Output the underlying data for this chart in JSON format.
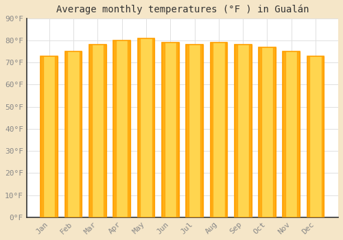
{
  "title": "Average monthly temperatures (°F ) in Gualán",
  "months": [
    "Jan",
    "Feb",
    "Mar",
    "Apr",
    "May",
    "Jun",
    "Jul",
    "Aug",
    "Sep",
    "Oct",
    "Nov",
    "Dec"
  ],
  "values": [
    73,
    75,
    78,
    80,
    81,
    79,
    78,
    79,
    78,
    77,
    75,
    73
  ],
  "bar_color_center": "#FFD54F",
  "bar_color_edge": "#FFA000",
  "background_color": "#FFFFFF",
  "fig_background_color": "#F5E6C8",
  "grid_color": "#E0E0E0",
  "ylim": [
    0,
    90
  ],
  "yticks": [
    0,
    10,
    20,
    30,
    40,
    50,
    60,
    70,
    80,
    90
  ],
  "ytick_labels": [
    "0°F",
    "10°F",
    "20°F",
    "30°F",
    "40°F",
    "50°F",
    "60°F",
    "70°F",
    "80°F",
    "90°F"
  ],
  "title_fontsize": 10,
  "tick_fontsize": 8,
  "axis_color": "#888888",
  "spine_color": "#333333"
}
